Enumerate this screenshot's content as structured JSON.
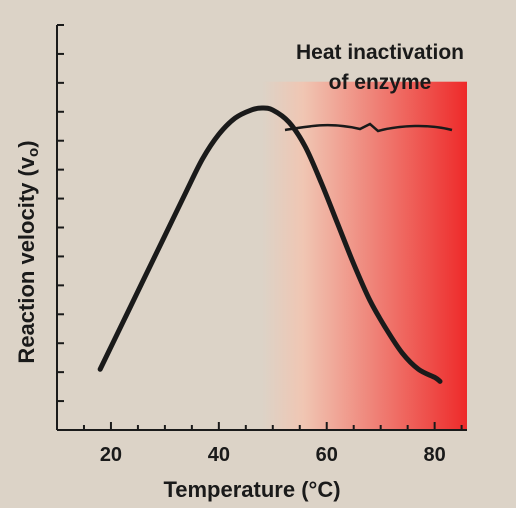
{
  "chart_data": {
    "type": "line",
    "xlabel": "Temperature (°C)",
    "ylabel": "Reaction velocity (v",
    "ylabel_subscript": "o",
    "ylabel_suffix": ")",
    "xlim": [
      10,
      86
    ],
    "ylim": [
      0,
      1
    ],
    "x_ticks": [
      20,
      40,
      60,
      80
    ],
    "y_ticks_unlabeled": 14,
    "grid": false,
    "series": [
      {
        "x": [
          18,
          22,
          26,
          30,
          34,
          37,
          40,
          43,
          46,
          48,
          50,
          53,
          56,
          59,
          62,
          65,
          68,
          71,
          74,
          77,
          80,
          81
        ],
        "y": [
          0.15,
          0.26,
          0.37,
          0.48,
          0.59,
          0.67,
          0.73,
          0.77,
          0.79,
          0.795,
          0.79,
          0.76,
          0.7,
          0.61,
          0.51,
          0.41,
          0.32,
          0.25,
          0.19,
          0.15,
          0.13,
          0.12
        ],
        "color": "#1a1a1a"
      }
    ],
    "annotation": {
      "text_line1": "Heat inactivation",
      "text_line2": "of enzyme",
      "region_x": [
        48,
        86
      ],
      "region_y_top": 0.86,
      "gradient_colors": [
        "#dcd3c7",
        "#ee2a2a"
      ]
    }
  }
}
